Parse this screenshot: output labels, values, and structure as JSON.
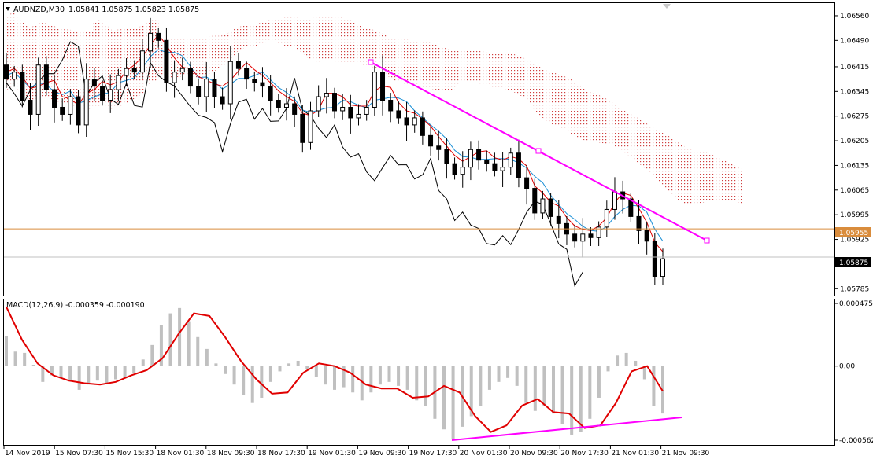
{
  "chart": {
    "symbol_label": "AUDNZD,M30",
    "ohlc_text": "1.05841 1.05875 1.05823 1.05875",
    "colors": {
      "background": "#ffffff",
      "candles": "#000000",
      "kijun": "#e00000",
      "tenkan": "#1a8fd6",
      "chikou": "#000000",
      "kumo": "#d04040",
      "trendline": "#ff00ff",
      "hline": "#d98c3c",
      "macd_hist": "#c0c0c0",
      "macd_signal": "#e00000"
    }
  },
  "price_axis": {
    "ticks": [
      "1.06560",
      "1.06490",
      "1.06415",
      "1.06345",
      "1.06275",
      "1.06205",
      "1.06135",
      "1.06065",
      "1.05995",
      "1.05925",
      "1.05855",
      "1.05785"
    ],
    "hline_label": "1.05955",
    "current_label": "1.05875"
  },
  "macd": {
    "title": "MACD(12,26,9) -0.000359 -0.000190",
    "ticks": [
      "0.000475",
      "0.00",
      "-0.000562"
    ]
  },
  "time_axis": {
    "labels": [
      "14 Nov 2019",
      "15 Nov 07:30",
      "15 Nov 15:30",
      "18 Nov 01:30",
      "18 Nov 09:30",
      "18 Nov 17:30",
      "19 Nov 01:30",
      "19 Nov 09:30",
      "19 Nov 17:30",
      "20 Nov 01:30",
      "20 Nov 09:30",
      "20 Nov 17:30",
      "21 Nov 01:30",
      "21 Nov 09:30"
    ]
  },
  "chart_data": [
    {
      "type": "candlestick",
      "name": "AUDNZD,M30",
      "ylim": [
        1.0577,
        1.0658
      ],
      "horizontal_line": 1.05955,
      "current_price": 1.05875,
      "trendline": {
        "start": 1.06418,
        "end": 1.05932
      },
      "closes": [
        1.0638,
        1.064,
        1.0632,
        1.0628,
        1.0642,
        1.0635,
        1.063,
        1.0628,
        1.0633,
        1.0625,
        1.0638,
        1.0636,
        1.0632,
        1.0635,
        1.0639,
        1.0641,
        1.064,
        1.0646,
        1.0651,
        1.0649,
        1.0637,
        1.064,
        1.0641,
        1.0636,
        1.0633,
        1.0638,
        1.0633,
        1.0631,
        1.0643,
        1.0641,
        1.0638,
        1.0637,
        1.0636,
        1.0632,
        1.063,
        1.0631,
        1.0628,
        1.062,
        1.0629,
        1.0633,
        1.0634,
        1.0629,
        1.063,
        1.0627,
        1.0628,
        1.063,
        1.064,
        1.0632,
        1.0629,
        1.0627,
        1.0625,
        1.0627,
        1.0622,
        1.0619,
        1.0618,
        1.0614,
        1.0611,
        1.0613,
        1.0618,
        1.0615,
        1.0614,
        1.0612,
        1.0613,
        1.0617,
        1.061,
        1.0607,
        1.06,
        1.0604,
        1.0599,
        1.0597,
        1.0594,
        1.0592,
        1.0594,
        1.0593,
        1.0596,
        1.0601,
        1.0606,
        1.0604,
        1.0599,
        1.0595,
        1.0592,
        1.0582,
        1.0587
      ]
    },
    {
      "type": "bar+line",
      "name": "MACD(12,26,9)",
      "main_value": -0.000359,
      "signal_value": -0.00019,
      "ylim": [
        -0.000562,
        0.000475
      ],
      "histogram": [
        0.00023,
        0.00011,
        0.0001,
        1e-05,
        -0.00012,
        -7e-05,
        -9e-05,
        -0.00011,
        -0.00018,
        -0.00014,
        -0.00011,
        -0.00013,
        -0.0001,
        -9e-05,
        -5e-05,
        5e-05,
        0.00016,
        0.00031,
        0.0004,
        0.00044,
        0.00034,
        0.00022,
        0.00013,
        2e-05,
        -6e-05,
        -0.00014,
        -0.00022,
        -0.00028,
        -0.00024,
        -0.00012,
        -4e-05,
        2e-05,
        4e-05,
        -2e-05,
        -8e-05,
        -0.00014,
        -0.00018,
        -0.00016,
        -0.0002,
        -0.00026,
        -0.0002,
        -0.00014,
        -0.00012,
        -0.00015,
        -0.00018,
        -0.00026,
        -0.0003,
        -0.0004,
        -0.00048,
        -0.00055,
        -0.00046,
        -0.00038,
        -0.0003,
        -0.00018,
        -0.00012,
        -9e-05,
        -0.00015,
        -0.00028,
        -0.00034,
        -0.0003,
        -0.00036,
        -0.00044,
        -0.00052,
        -0.0005,
        -0.0004,
        -0.00024,
        -4e-05,
        8e-05,
        0.0001,
        4e-05,
        -0.0001,
        -0.0003,
        -0.00036
      ],
      "signal": [
        0.00045,
        0.0002,
        2e-05,
        -7e-05,
        -0.00011,
        -0.00013,
        -0.00014,
        -0.00012,
        -7e-05,
        -3e-05,
        6e-05,
        0.00024,
        0.0004,
        0.00038,
        0.00022,
        4e-05,
        -0.0001,
        -0.00021,
        -0.0002,
        -5e-05,
        2e-05,
        0.0,
        -5e-05,
        -0.00014,
        -0.00017,
        -0.00017,
        -0.00024,
        -0.00023,
        -0.00015,
        -0.0002,
        -0.00038,
        -0.0005,
        -0.00045,
        -0.0003,
        -0.00025,
        -0.00035,
        -0.00036,
        -0.00047,
        -0.00045,
        -0.00028,
        -4e-05,
        0.0,
        -0.00019
      ]
    }
  ]
}
